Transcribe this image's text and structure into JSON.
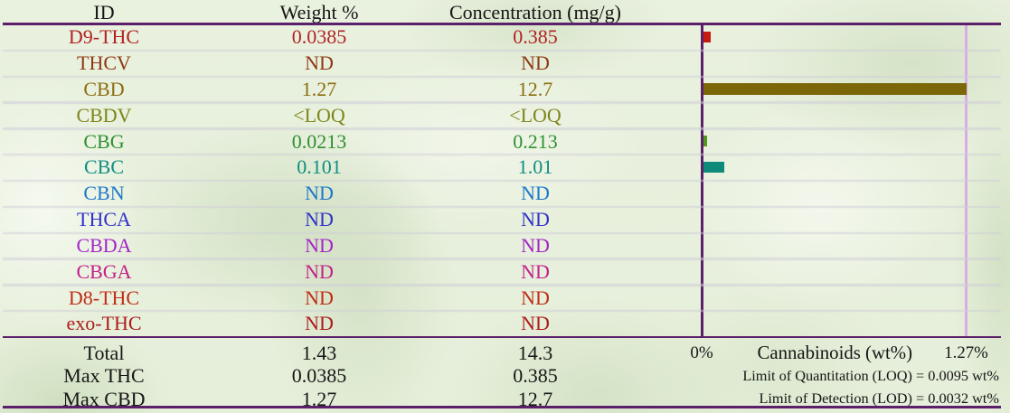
{
  "report": {
    "type": "cannabinoid-potency-table"
  },
  "table": {
    "columns": [
      "ID",
      "Weight %",
      "Concentration (mg/g)"
    ],
    "rows": [
      {
        "id": "D9-THC",
        "weight": "0.0385",
        "concentration": "0.385",
        "color": "#b22222"
      },
      {
        "id": "THCV",
        "weight": "ND",
        "concentration": "ND",
        "color": "#8e3a14"
      },
      {
        "id": "CBD",
        "weight": "1.27",
        "concentration": "12.7",
        "color": "#8c6d0e"
      },
      {
        "id": "CBDV",
        "weight": "<LOQ",
        "concentration": "<LOQ",
        "color": "#7d8619"
      },
      {
        "id": "CBG",
        "weight": "0.0213",
        "concentration": "0.213",
        "color": "#2f9031"
      },
      {
        "id": "CBC",
        "weight": "0.101",
        "concentration": "1.01",
        "color": "#0f8e80"
      },
      {
        "id": "CBN",
        "weight": "ND",
        "concentration": "ND",
        "color": "#1d78c8"
      },
      {
        "id": "THCA",
        "weight": "ND",
        "concentration": "ND",
        "color": "#3232c8"
      },
      {
        "id": "CBDA",
        "weight": "ND",
        "concentration": "ND",
        "color": "#a426c8"
      },
      {
        "id": "CBGA",
        "weight": "ND",
        "concentration": "ND",
        "color": "#c32289"
      },
      {
        "id": "D8-THC",
        "weight": "ND",
        "concentration": "ND",
        "color": "#bf2e18"
      },
      {
        "id": "exo-THC",
        "weight": "ND",
        "concentration": "ND",
        "color": "#ad1c1c"
      }
    ]
  },
  "summary": {
    "rows": [
      {
        "label": "Total",
        "weight": "1.43",
        "concentration": "14.3"
      },
      {
        "label": "Max THC",
        "weight": "0.0385",
        "concentration": "0.385"
      },
      {
        "label": "Max CBD",
        "weight": "1.27",
        "concentration": "12.7"
      }
    ]
  },
  "legend": {
    "zero_label": "0%",
    "axis_label": "Cannabinoids (wt%)",
    "max_label": "1.27%",
    "loq_line": "Limit of Quantitation (LOQ) = 0.0095 wt%",
    "lod_line": "Limit of Detection (LOD) = 0.0032 wt%"
  },
  "chart_data": {
    "type": "bar",
    "orientation": "horizontal",
    "categories": [
      "D9-THC",
      "THCV",
      "CBD",
      "CBDV",
      "CBG",
      "CBC",
      "CBN",
      "THCA",
      "CBDA",
      "CBGA",
      "D8-THC",
      "exo-THC"
    ],
    "values": [
      0.0385,
      0,
      1.27,
      0,
      0.0213,
      0.101,
      0,
      0,
      0,
      0,
      0,
      0
    ],
    "bar_colors": [
      "#c41a10",
      null,
      "#7c6708",
      null,
      "#51981b",
      "#0d8a7a",
      null,
      null,
      null,
      null,
      null,
      null
    ],
    "xlabel": "Cannabinoids (wt%)",
    "xlim": [
      0,
      1.27
    ],
    "axis_tick_labels": [
      "0%",
      "1.27%"
    ],
    "grid": false,
    "legend_position": "none"
  },
  "colors": {
    "rule_purple": "#5b2069",
    "axis_zero_line": "#5b2069",
    "axis_max_line": "#d9ade4",
    "separator": "rgba(206,206,215,0.62)",
    "header_text": "#161616",
    "summary_text": "#161616"
  }
}
